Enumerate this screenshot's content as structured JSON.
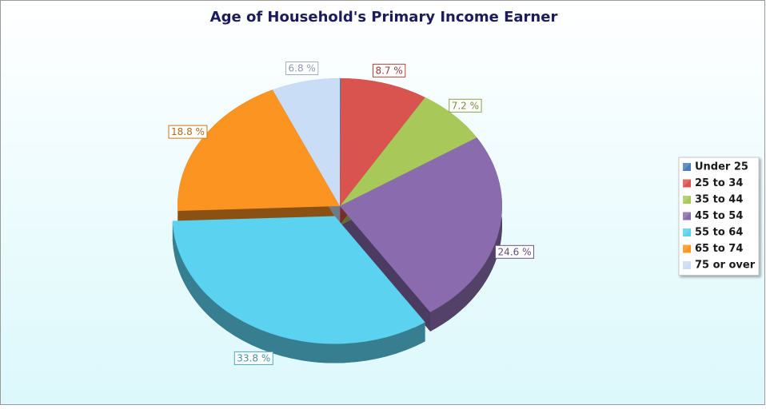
{
  "chart_data": {
    "type": "pie",
    "title": "Age of Household's Primary Income Earner",
    "categories": [
      "Under 25",
      "25 to 34",
      "35 to 44",
      "45 to 54",
      "55 to 64",
      "65 to 74",
      "75 or over"
    ],
    "values": [
      0.1,
      8.7,
      7.2,
      24.6,
      33.8,
      18.8,
      6.8
    ],
    "value_labels": [
      null,
      "8.7 %",
      "7.2 %",
      "24.6 %",
      "33.8 %",
      "18.8 %",
      "6.8 %"
    ],
    "colors": [
      "#4a7ebb",
      "#d9534f",
      "#a8c95a",
      "#8a6cae",
      "#5ad2f0",
      "#fb9420",
      "#c9ddf6"
    ],
    "legend": "right"
  }
}
